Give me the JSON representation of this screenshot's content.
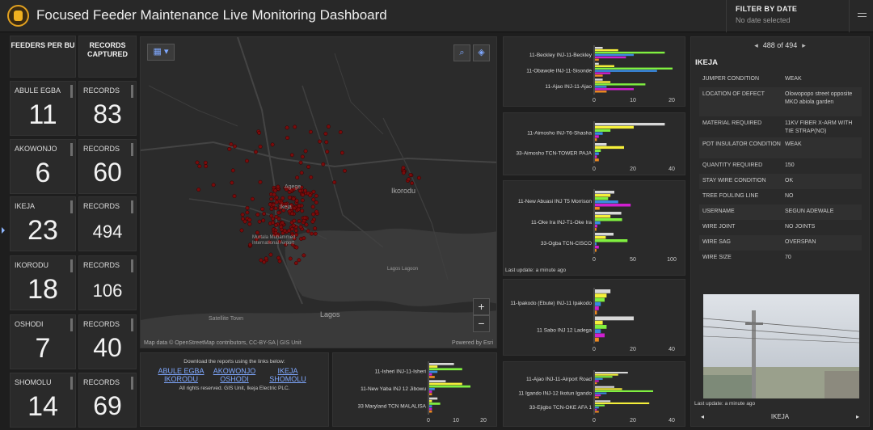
{
  "app": {
    "title": "Focused Feeder Maintenance Live Monitoring Dashboard"
  },
  "filter": {
    "title": "FILTER BY DATE",
    "subtitle": "No date selected"
  },
  "summary": {
    "col1_header": "FEEDERS PER BU",
    "col2_header": "RECORDS CAPTURED",
    "rows": [
      {
        "bu": "ABULE EGBA",
        "feeders": "11",
        "records_label": "RECORDS",
        "records": "83"
      },
      {
        "bu": "AKOWONJO",
        "feeders": "6",
        "records_label": "RECORDS",
        "records": "60"
      },
      {
        "bu": "IKEJA",
        "feeders": "23",
        "records_label": "RECORDS",
        "records": "494"
      },
      {
        "bu": "IKORODU",
        "feeders": "18",
        "records_label": "RECORDS",
        "records": "106"
      },
      {
        "bu": "OSHODI",
        "feeders": "7",
        "records_label": "RECORDS",
        "records": "40"
      },
      {
        "bu": "SHOMOLU",
        "feeders": "14",
        "records_label": "RECORDS",
        "records": "69"
      }
    ]
  },
  "map": {
    "labels": {
      "ikorodu": "Ikorodu",
      "lagos": "Lagos",
      "ikeja": "Ikeja",
      "agege": "Agege",
      "satellite_town": "Satellite Town",
      "airport": "Murtala Muhammed International Airport",
      "lagos_lagoon": "Lagos Lagoon"
    },
    "credit": "Map data © OpenStreetMap contributors, CC-BY-SA | GIS Unit",
    "powered": "Powered by Esri",
    "zoom_in": "+",
    "zoom_out": "−"
  },
  "links": {
    "title": "Download the reports using the links below:",
    "row1": [
      "ABULE EGBA",
      "AKOWONJO",
      "IKEJA"
    ],
    "row2": [
      "IKORODU",
      "OSHODI",
      "SHOMOLU"
    ],
    "footer": "All rights reserved. GIS Unit, Ikeja Electric PLC."
  },
  "last_update": "Last update: a minute ago",
  "chart_data": [
    {
      "type": "bar",
      "categories": [
        "11-Beckley INJ-11-Beckley",
        "11-Obawole INJ-11-Sisonde",
        "11-Ajao INJ-11-Ajao"
      ],
      "series_colors": [
        "#d8d8d8",
        "#f5ef3a",
        "#80f040",
        "#3a8ae0",
        "#d020d0",
        "#f08a20"
      ],
      "values": [
        [
          2,
          6,
          18,
          10,
          8,
          1
        ],
        [
          1,
          5,
          20,
          16,
          4,
          2
        ],
        [
          2,
          4,
          13,
          3,
          10,
          3
        ]
      ],
      "xticks": [
        "0",
        "10",
        "20"
      ],
      "xmax": 20
    },
    {
      "type": "bar",
      "categories": [
        "11-Aimosho INJ-T6-Shasha",
        "33-Aimosho TCN-TOWER PAJA"
      ],
      "series_colors": [
        "#d8d8d8",
        "#f5ef3a",
        "#80f040",
        "#3a8ae0",
        "#d020d0",
        "#f08a20"
      ],
      "values": [
        [
          36,
          20,
          8,
          4,
          2,
          1
        ],
        [
          6,
          15,
          3,
          2,
          1,
          2
        ]
      ],
      "xticks": [
        "0",
        "20",
        "40"
      ],
      "xmax": 40
    },
    {
      "type": "bar",
      "categories": [
        "11-New Abuasi INJ T5 Morrison",
        "11-Oke Ira INJ-T1-Oke Ira",
        "33-Ogba TCN-CISCO"
      ],
      "series_colors": [
        "#d8d8d8",
        "#f5ef3a",
        "#80f040",
        "#3a8ae0",
        "#d020d0",
        "#f08a20"
      ],
      "values": [
        [
          25,
          20,
          17,
          30,
          46,
          6
        ],
        [
          34,
          20,
          35,
          7,
          3,
          2
        ],
        [
          24,
          14,
          42,
          2,
          5,
          2
        ]
      ],
      "xticks": [
        "0",
        "50",
        "100"
      ],
      "xmax": 100
    },
    {
      "type": "bar",
      "categories": [
        "11-Ipakodo (Ebute) INJ-11 Ipakodo",
        "11 Sabo INJ 12 Ladega"
      ],
      "series_colors": [
        "#d8d8d8",
        "#f5ef3a",
        "#80f040",
        "#3a8ae0",
        "#d020d0",
        "#f08a20"
      ],
      "values": [
        [
          8,
          6,
          5,
          3,
          2,
          1
        ],
        [
          20,
          4,
          6,
          3,
          5,
          2
        ]
      ],
      "xticks": [
        "0",
        "20",
        "40"
      ],
      "xmax": 40
    },
    {
      "type": "bar",
      "categories": [
        "11-Ajao INJ-11-Airport Road",
        "11 Igando INJ-12 Ikotun Igando",
        "33-Ejigbo TCN-OKE AFA 1"
      ],
      "series_colors": [
        "#d8d8d8",
        "#f5ef3a",
        "#80f040",
        "#3a8ae0",
        "#d020d0",
        "#f08a20"
      ],
      "values": [
        [
          17,
          12,
          9,
          4,
          2,
          1
        ],
        [
          10,
          14,
          30,
          6,
          3,
          2
        ],
        [
          8,
          28,
          5,
          2,
          1,
          2
        ]
      ],
      "xticks": [
        "0",
        "20",
        "40"
      ],
      "xmax": 40
    },
    {
      "type": "bar",
      "categories": [
        "11-Isheri INJ-11-Isheri",
        "11-New Yaba INJ 12 Jibowu",
        "33 Maryland TCN MALALISA"
      ],
      "series_colors": [
        "#d8d8d8",
        "#f5ef3a",
        "#80f040",
        "#3a8ae0",
        "#d020d0",
        "#f08a20"
      ],
      "values": [
        [
          9,
          3,
          12,
          3,
          1,
          2
        ],
        [
          6,
          12,
          15,
          2,
          1,
          1
        ],
        [
          3,
          1,
          4,
          1,
          1,
          1
        ]
      ],
      "xticks": [
        "0",
        "10",
        "20"
      ],
      "xmax": 20
    }
  ],
  "detail": {
    "pager_text": "488 of 494",
    "title": "IKEJA",
    "attributes": [
      {
        "k": "JUMPER CONDITION",
        "v": "WEAK"
      },
      {
        "k": "LOCATION OF DEFECT",
        "v": "Olowopopo street opposite MKO abiola garden"
      },
      {
        "k": "MATERIAL REQUIRED",
        "v": "11KV FIBER X-ARM WITH TIE STRAP(NO)"
      },
      {
        "k": "POT INSULATOR CONDITION",
        "v": "WEAK"
      },
      {
        "k": "QUANTITY REQUIRED",
        "v": "150"
      },
      {
        "k": "STAY WIRE CONDITION",
        "v": "OK"
      },
      {
        "k": "TREE FOULING LINE",
        "v": "NO"
      },
      {
        "k": "USERNAME",
        "v": "SEGUN ADEWALE"
      },
      {
        "k": "WIRE JOINT",
        "v": "NO JOINTS"
      },
      {
        "k": "WIRE SAG",
        "v": "OVERSPAN"
      },
      {
        "k": "WIRE SIZE",
        "v": "70"
      }
    ],
    "footer_title": "IKEJA"
  }
}
